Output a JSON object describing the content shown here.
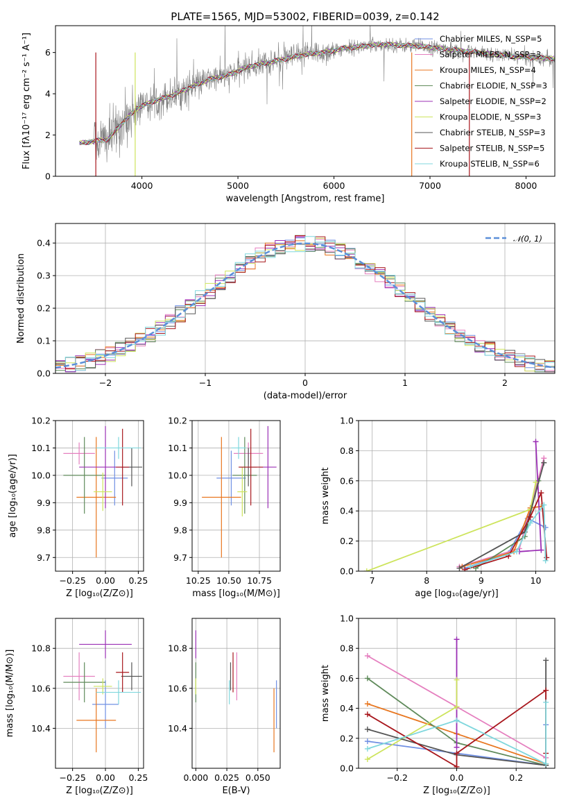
{
  "figure": {
    "title": "PLATE=1565, MJD=53002, FIBERID=0039, z=0.142"
  },
  "colors": {
    "Chabrier MILES": "#6f8fe3",
    "Salpeter MILES": "#e57fbf",
    "Kroupa MILES": "#e8761f",
    "Chabrier ELODIE": "#5f8a5a",
    "Salpeter ELODIE": "#9b2fb5",
    "Kroupa ELODIE": "#cde45c",
    "Chabrier STELIB": "#555555",
    "Salpeter STELIB": "#a8171d",
    "Kroupa STELIB": "#7fd7dd",
    "spectrum": "#808080",
    "gauss": "#5b8fd8"
  },
  "chart_data": [
    {
      "id": "spectrum",
      "type": "line",
      "title": "PLATE=1565, MJD=53002, FIBERID=0039, z=0.142",
      "xlabel": "wavelength [Angstrom, rest frame]",
      "ylabel": "Flux [fλ10⁻¹⁷ erg cm⁻² s⁻¹ A⁻¹]",
      "xlim": [
        3100,
        8300
      ],
      "ylim": [
        0,
        7.3
      ],
      "xticks": [
        "4000",
        "5000",
        "6000",
        "7000",
        "8000"
      ],
      "yticks": [
        "0",
        "2",
        "4",
        "6"
      ],
      "grid": false,
      "legend_position": "top-right",
      "legend": [
        "Chabrier MILES, N_SSP=5",
        "Salpeter MILES, N_SSP=3",
        "Kroupa MILES, N_SSP=4",
        "Chabrier ELODIE, N_SSP=3",
        "Salpeter ELODIE, N_SSP=2",
        "Kroupa ELODIE, N_SSP=3",
        "Chabrier STELIB, N_SSP=3",
        "Salpeter STELIB, N_SSP=5",
        "Kroupa STELIB, N_SSP=6"
      ],
      "spectrum_x_range": [
        3350,
        8300
      ],
      "continuum": [
        [
          3350,
          1.6
        ],
        [
          3500,
          1.7
        ],
        [
          3650,
          1.8
        ],
        [
          3800,
          2.6
        ],
        [
          3950,
          3.3
        ],
        [
          4100,
          3.6
        ],
        [
          4300,
          3.9
        ],
        [
          4500,
          4.3
        ],
        [
          4700,
          4.7
        ],
        [
          4900,
          4.9
        ],
        [
          5100,
          5.3
        ],
        [
          5300,
          5.5
        ],
        [
          5500,
          5.7
        ],
        [
          5700,
          5.9
        ],
        [
          5900,
          6.0
        ],
        [
          6100,
          6.2
        ],
        [
          6300,
          6.3
        ],
        [
          6500,
          6.4
        ],
        [
          6700,
          6.35
        ],
        [
          6900,
          6.3
        ],
        [
          7100,
          6.2
        ],
        [
          7300,
          6.1
        ],
        [
          7500,
          6.0
        ],
        [
          7700,
          5.9
        ],
        [
          7900,
          5.8
        ],
        [
          8300,
          5.7
        ]
      ]
    },
    {
      "id": "residuals",
      "type": "histogram",
      "xlabel": "(data-model)/error",
      "ylabel": "Normed distribution",
      "xlim": [
        -2.5,
        2.5
      ],
      "ylim": [
        0,
        0.46
      ],
      "xticks": [
        "−2",
        "−1",
        "0",
        "1",
        "2"
      ],
      "yticks": [
        "0.0",
        "0.1",
        "0.2",
        "0.3",
        "0.4"
      ],
      "grid": true,
      "legend_position": "top-right",
      "legend": [
        "𝒩(0, 1)"
      ],
      "bin_width": 0.1,
      "gaussian": {
        "mean": 0,
        "sigma": 1
      }
    },
    {
      "id": "age-vs-Z",
      "type": "errorbar",
      "xlabel": "Z [log₁₀(Z/Z⊙)]",
      "ylabel": "age  [log₁₀(age/yr)]",
      "xlim": [
        -0.38,
        0.29
      ],
      "ylim": [
        9.65,
        10.2
      ],
      "xticks": [
        "−0.25",
        "0.00",
        "0.25"
      ],
      "yticks": [
        "9.7",
        "9.8",
        "9.9",
        "10.0",
        "10.1",
        "10.2"
      ],
      "grid": true,
      "points": [
        {
          "model": "Chabrier MILES",
          "x": 0.07,
          "xerr": 0.1,
          "y": 9.99,
          "yerr": 0.1
        },
        {
          "model": "Salpeter MILES",
          "x": -0.2,
          "xerr": 0.12,
          "y": 10.08,
          "yerr": 0.04
        },
        {
          "model": "Kroupa MILES",
          "x": -0.07,
          "xerr": 0.15,
          "y": 9.92,
          "yerr": 0.22
        },
        {
          "model": "Chabrier ELODIE",
          "x": -0.16,
          "xerr": 0.16,
          "y": 10.0,
          "yerr": 0.14
        },
        {
          "model": "Salpeter ELODIE",
          "x": 0.0,
          "xerr": 0.2,
          "y": 10.03,
          "yerr": 0.15
        },
        {
          "model": "Kroupa ELODIE",
          "x": -0.02,
          "xerr": 0.07,
          "y": 9.94,
          "yerr": 0.07
        },
        {
          "model": "Chabrier STELIB",
          "x": 0.2,
          "xerr": 0.08,
          "y": 10.03,
          "yerr": 0.07
        },
        {
          "model": "Salpeter STELIB",
          "x": 0.13,
          "xerr": 0.05,
          "y": 10.03,
          "yerr": 0.14
        },
        {
          "model": "Kroupa STELIB",
          "x": 0.1,
          "xerr": 0.17,
          "y": 10.1,
          "yerr": 0.04
        }
      ]
    },
    {
      "id": "age-vs-mass",
      "type": "errorbar",
      "xlabel": "mass [log₁₀(M/M⊙)]",
      "ylabel": "",
      "xlim": [
        10.2,
        10.92
      ],
      "ylim": [
        9.65,
        10.2
      ],
      "xticks": [
        "10.25",
        "10.50",
        "10.75"
      ],
      "yticks": [
        "9.7",
        "9.8",
        "9.9",
        "10.0",
        "10.1",
        "10.2"
      ],
      "grid": true,
      "points": [
        {
          "model": "Chabrier MILES",
          "x": 10.52,
          "xerr": 0.12,
          "y": 9.99,
          "yerr": 0.1
        },
        {
          "model": "Salpeter MILES",
          "x": 10.66,
          "xerr": 0.12,
          "y": 10.08,
          "yerr": 0.04
        },
        {
          "model": "Kroupa MILES",
          "x": 10.44,
          "xerr": 0.16,
          "y": 9.92,
          "yerr": 0.22
        },
        {
          "model": "Chabrier ELODIE",
          "x": 10.63,
          "xerr": 0.1,
          "y": 10.0,
          "yerr": 0.14
        },
        {
          "model": "Salpeter ELODIE",
          "x": 10.82,
          "xerr": 0.07,
          "y": 10.03,
          "yerr": 0.15
        },
        {
          "model": "Kroupa ELODIE",
          "x": 10.61,
          "xerr": 0.04,
          "y": 9.94,
          "yerr": 0.09
        },
        {
          "model": "Chabrier STELIB",
          "x": 10.66,
          "xerr": 0.07,
          "y": 10.03,
          "yerr": 0.07
        },
        {
          "model": "Salpeter STELIB",
          "x": 10.68,
          "xerr": 0.1,
          "y": 10.03,
          "yerr": 0.14
        },
        {
          "model": "Kroupa STELIB",
          "x": 10.58,
          "xerr": 0.06,
          "y": 10.1,
          "yerr": 0.04
        }
      ]
    },
    {
      "id": "mass-weight-vs-age",
      "type": "line",
      "xlabel": "age  [log₁₀(age/yr)]",
      "ylabel": "mass weight",
      "xlim": [
        6.75,
        10.35
      ],
      "ylim": [
        0,
        1.0
      ],
      "xticks": [
        "7",
        "8",
        "9",
        "10"
      ],
      "yticks": [
        "0.0",
        "0.2",
        "0.4",
        "0.6",
        "0.8",
        "1.0"
      ],
      "grid": true,
      "series": [
        {
          "model": "Chabrier MILES",
          "points": [
            [
              8.7,
              0.02
            ],
            [
              9.5,
              0.12
            ],
            [
              9.85,
              0.35
            ],
            [
              10.18,
              0.29
            ]
          ]
        },
        {
          "model": "Salpeter MILES",
          "points": [
            [
              8.6,
              0.03
            ],
            [
              9.7,
              0.15
            ],
            [
              10.15,
              0.75
            ]
          ]
        },
        {
          "model": "Kroupa MILES",
          "points": [
            [
              8.65,
              0.03
            ],
            [
              9.6,
              0.13
            ],
            [
              9.9,
              0.42
            ],
            [
              10.1,
              0.43
            ]
          ]
        },
        {
          "model": "Chabrier ELODIE",
          "points": [
            [
              8.9,
              0.02
            ],
            [
              9.8,
              0.23
            ],
            [
              10.05,
              0.6
            ]
          ]
        },
        {
          "model": "Salpeter ELODIE",
          "points": [
            [
              9.7,
              0.13
            ],
            [
              10.1,
              0.14
            ],
            [
              10.0,
              0.86
            ]
          ]
        },
        {
          "model": "Kroupa ELODIE",
          "points": [
            [
              6.9,
              0.0
            ],
            [
              9.9,
              0.41
            ],
            [
              10.0,
              0.59
            ]
          ]
        },
        {
          "model": "Chabrier STELIB",
          "points": [
            [
              8.6,
              0.02
            ],
            [
              9.8,
              0.26
            ],
            [
              10.15,
              0.72
            ]
          ]
        },
        {
          "model": "Salpeter STELIB",
          "points": [
            [
              8.7,
              0.01
            ],
            [
              9.5,
              0.1
            ],
            [
              9.9,
              0.36
            ],
            [
              10.1,
              0.52
            ],
            [
              10.2,
              0.09
            ]
          ]
        },
        {
          "model": "Kroupa STELIB",
          "points": [
            [
              8.8,
              0.03
            ],
            [
              9.65,
              0.13
            ],
            [
              9.9,
              0.32
            ],
            [
              10.15,
              0.44
            ],
            [
              10.18,
              0.07
            ]
          ]
        }
      ]
    },
    {
      "id": "mass-vs-Z",
      "type": "errorbar",
      "xlabel": "Z [log₁₀(Z/Z⊙)]",
      "ylabel": "mass [log₁₀(M/M⊙)]",
      "xlim": [
        -0.38,
        0.29
      ],
      "ylim": [
        10.2,
        10.95
      ],
      "xticks": [
        "−0.25",
        "0.00",
        "0.25"
      ],
      "yticks": [
        "10.4",
        "10.6",
        "10.8"
      ],
      "grid": true,
      "points": [
        {
          "model": "Chabrier MILES",
          "x": 0.0,
          "xerr": 0.1,
          "y": 10.52,
          "yerr": 0.12
        },
        {
          "model": "Salpeter MILES",
          "x": -0.2,
          "xerr": 0.12,
          "y": 10.66,
          "yerr": 0.12
        },
        {
          "model": "Kroupa MILES",
          "x": -0.07,
          "xerr": 0.15,
          "y": 10.44,
          "yerr": 0.16
        },
        {
          "model": "Chabrier ELODIE",
          "x": -0.16,
          "xerr": 0.16,
          "y": 10.63,
          "yerr": 0.1
        },
        {
          "model": "Salpeter ELODIE",
          "x": 0.0,
          "xerr": 0.2,
          "y": 10.82,
          "yerr": 0.07
        },
        {
          "model": "Kroupa ELODIE",
          "x": -0.02,
          "xerr": 0.07,
          "y": 10.61,
          "yerr": 0.04
        },
        {
          "model": "Chabrier STELIB",
          "x": 0.2,
          "xerr": 0.08,
          "y": 10.66,
          "yerr": 0.07
        },
        {
          "model": "Salpeter STELIB",
          "x": 0.13,
          "xerr": 0.05,
          "y": 10.68,
          "yerr": 0.1
        },
        {
          "model": "Kroupa STELIB",
          "x": 0.1,
          "xerr": 0.17,
          "y": 10.58,
          "yerr": 0.06
        }
      ]
    },
    {
      "id": "mass-vs-EBV",
      "type": "errorbar",
      "xlabel": "E(B-V)",
      "ylabel": "",
      "xlim": [
        -0.003,
        0.068
      ],
      "ylim": [
        10.2,
        10.95
      ],
      "xticks": [
        "0.000",
        "0.025",
        "0.050"
      ],
      "yticks": [
        "10.4",
        "10.6",
        "10.8"
      ],
      "grid": true,
      "points": [
        {
          "model": "Chabrier MILES",
          "x": 0.065,
          "xerr": 0.0,
          "y": 10.52,
          "yerr": 0.12
        },
        {
          "model": "Salpeter MILES",
          "x": 0.033,
          "xerr": 0.0,
          "y": 10.66,
          "yerr": 0.12
        },
        {
          "model": "Kroupa MILES",
          "x": 0.063,
          "xerr": 0.0,
          "y": 10.44,
          "yerr": 0.16
        },
        {
          "model": "Chabrier ELODIE",
          "x": 0.0,
          "xerr": 0.0,
          "y": 10.63,
          "yerr": 0.1
        },
        {
          "model": "Salpeter ELODIE",
          "x": 0.0,
          "xerr": 0.0,
          "y": 10.82,
          "yerr": 0.07
        },
        {
          "model": "Kroupa ELODIE",
          "x": 0.0,
          "xerr": 0.0,
          "y": 10.61,
          "yerr": 0.04
        },
        {
          "model": "Chabrier STELIB",
          "x": 0.028,
          "xerr": 0.0,
          "y": 10.66,
          "yerr": 0.07
        },
        {
          "model": "Salpeter STELIB",
          "x": 0.03,
          "xerr": 0.0,
          "y": 10.68,
          "yerr": 0.1
        },
        {
          "model": "Kroupa STELIB",
          "x": 0.027,
          "xerr": 0.0,
          "y": 10.58,
          "yerr": 0.06
        }
      ]
    },
    {
      "id": "mass-weight-vs-Z",
      "type": "line",
      "xlabel": "Z [log₁₀(Z/Z⊙)]",
      "ylabel": "mass weight",
      "xlim": [
        -0.33,
        0.33
      ],
      "ylim": [
        0,
        1.0
      ],
      "xticks": [
        "−0.2",
        "0.0",
        "0.2"
      ],
      "yticks": [
        "0.0",
        "0.2",
        "0.4",
        "0.6",
        "0.8",
        "1.0"
      ],
      "grid": true,
      "series": [
        {
          "model": "Chabrier MILES",
          "points": [
            [
              -0.3,
              0.18
            ],
            [
              0.0,
              0.1
            ],
            [
              0.3,
              0.02
            ],
            [
              0.3,
              0.29
            ]
          ]
        },
        {
          "model": "Salpeter MILES",
          "points": [
            [
              -0.3,
              0.75
            ],
            [
              0.0,
              0.41
            ],
            [
              0.3,
              0.07
            ]
          ]
        },
        {
          "model": "Kroupa MILES",
          "points": [
            [
              -0.3,
              0.43
            ],
            [
              0.0,
              0.23
            ],
            [
              0.3,
              0.03
            ]
          ]
        },
        {
          "model": "Chabrier ELODIE",
          "points": [
            [
              -0.3,
              0.6
            ],
            [
              0.0,
              0.17
            ],
            [
              0.3,
              0.02
            ]
          ]
        },
        {
          "model": "Salpeter ELODIE",
          "points": [
            [
              0.0,
              0.14
            ],
            [
              0.0,
              0.86
            ]
          ]
        },
        {
          "model": "Kroupa ELODIE",
          "points": [
            [
              -0.3,
              0.06
            ],
            [
              0.0,
              0.41
            ],
            [
              0.0,
              0.59
            ]
          ]
        },
        {
          "model": "Chabrier STELIB",
          "points": [
            [
              -0.3,
              0.26
            ],
            [
              0.0,
              0.09
            ],
            [
              0.3,
              0.02
            ],
            [
              0.3,
              0.72
            ]
          ]
        },
        {
          "model": "Salpeter STELIB",
          "points": [
            [
              -0.3,
              0.36
            ],
            [
              0.0,
              0.01
            ],
            [
              0.0,
              0.1
            ],
            [
              0.3,
              0.52
            ],
            [
              0.3,
              0.1
            ]
          ]
        },
        {
          "model": "Kroupa STELIB",
          "points": [
            [
              -0.3,
              0.13
            ],
            [
              0.0,
              0.32
            ],
            [
              0.3,
              0.03
            ],
            [
              0.3,
              0.44
            ]
          ]
        }
      ]
    }
  ]
}
